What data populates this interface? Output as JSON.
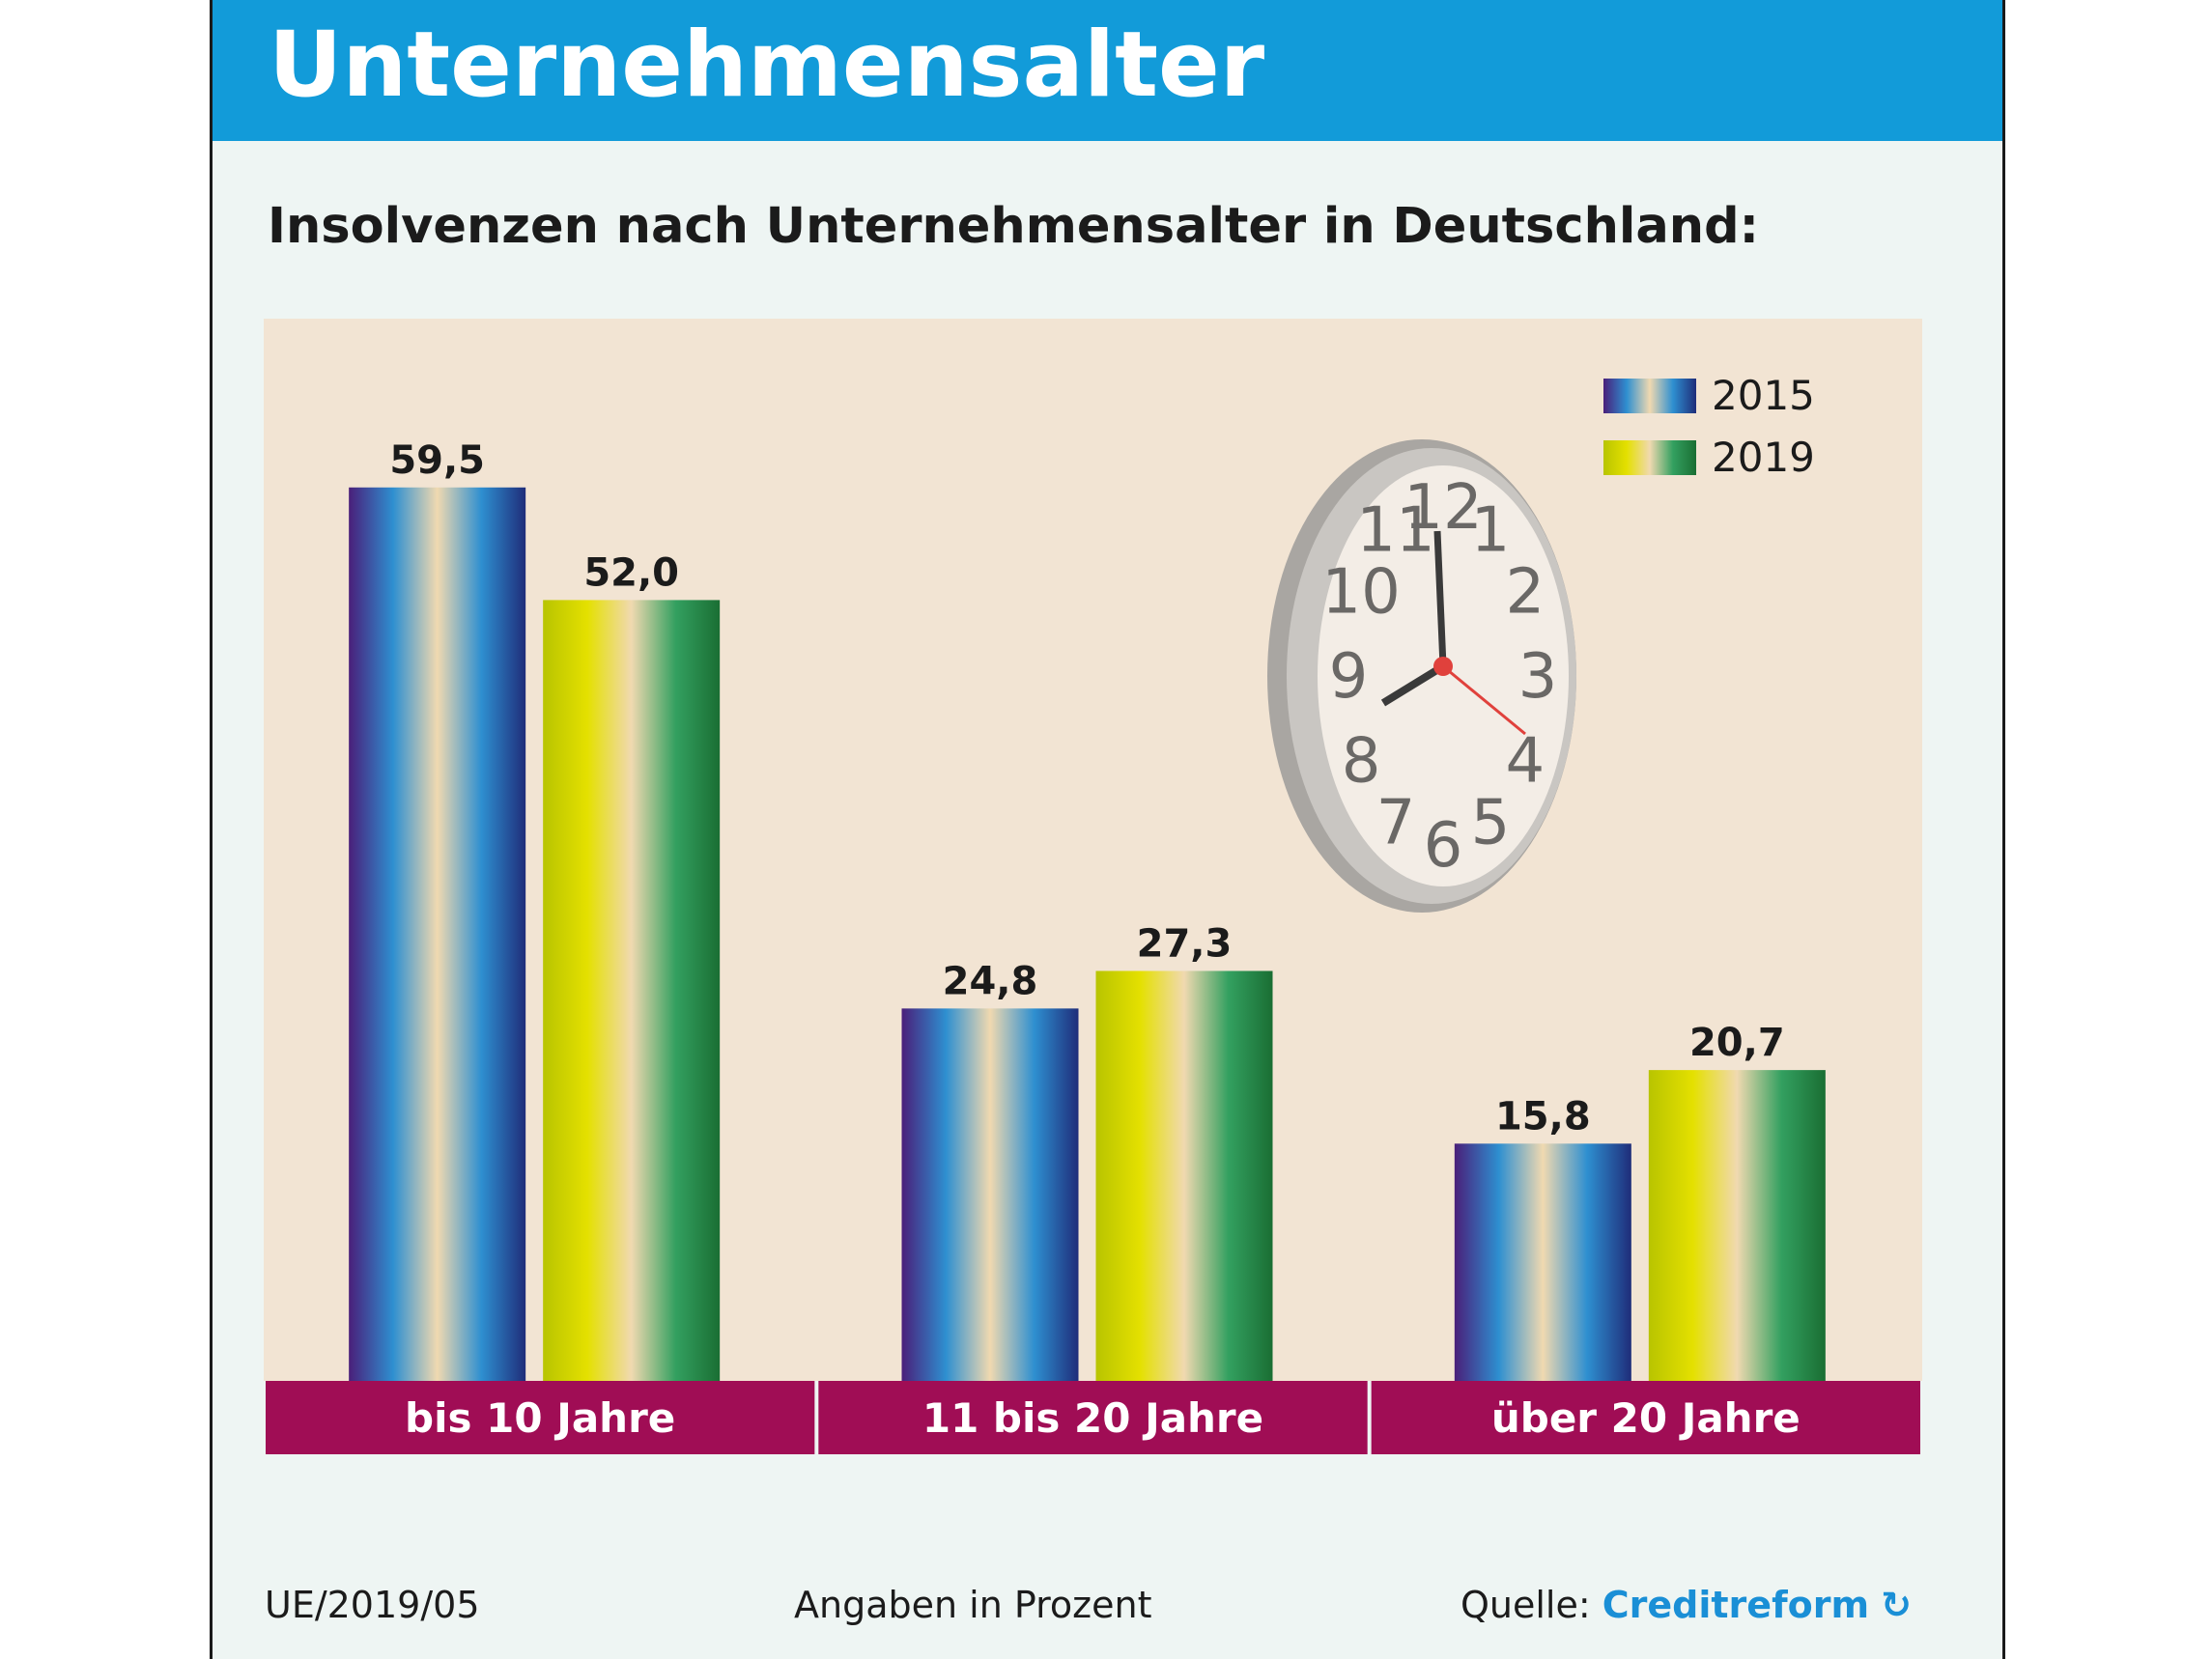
{
  "header": {
    "title": "Unternehmensalter"
  },
  "subtitle": "Insolvenzen nach Unternehmensalter in Deutschland:",
  "colors": {
    "header": "#129bd9",
    "plot_bg": "#f2e4d3",
    "category_band": "#a00d55",
    "series_2015": [
      "#4a1f7a",
      "#2e8fd0",
      "#f0d9b0",
      "#2e8fd0",
      "#1f2d7a"
    ],
    "series_2019": [
      "#b8c400",
      "#e4e000",
      "#f0d9b0",
      "#33a060",
      "#1a6e33"
    ]
  },
  "chart_data": {
    "type": "bar",
    "categories": [
      "bis 10 Jahre",
      "11 bis 20 Jahre",
      "über 20 Jahre"
    ],
    "series": [
      {
        "name": "2015",
        "values": [
          59.5,
          24.8,
          15.8
        ],
        "labels": [
          "59,5",
          "24,8",
          "15,8"
        ]
      },
      {
        "name": "2019",
        "values": [
          52.0,
          27.3,
          20.7
        ],
        "labels": [
          "52,0",
          "27,3",
          "20,7"
        ]
      }
    ],
    "title": "Insolvenzen nach Unternehmensalter in Deutschland:",
    "xlabel": "",
    "ylabel": "",
    "ylim": [
      0,
      64
    ],
    "grid": false,
    "legend": "top-right",
    "unit_note": "Angaben in Prozent"
  },
  "clock": {
    "numerals": [
      "12",
      "1",
      "2",
      "3",
      "4",
      "5",
      "6",
      "7",
      "8",
      "9",
      "10",
      "11"
    ]
  },
  "footer": {
    "code": "UE/2019/05",
    "note": "Angaben in Prozent",
    "source_label": "Quelle:",
    "source_name": "Creditreform"
  }
}
